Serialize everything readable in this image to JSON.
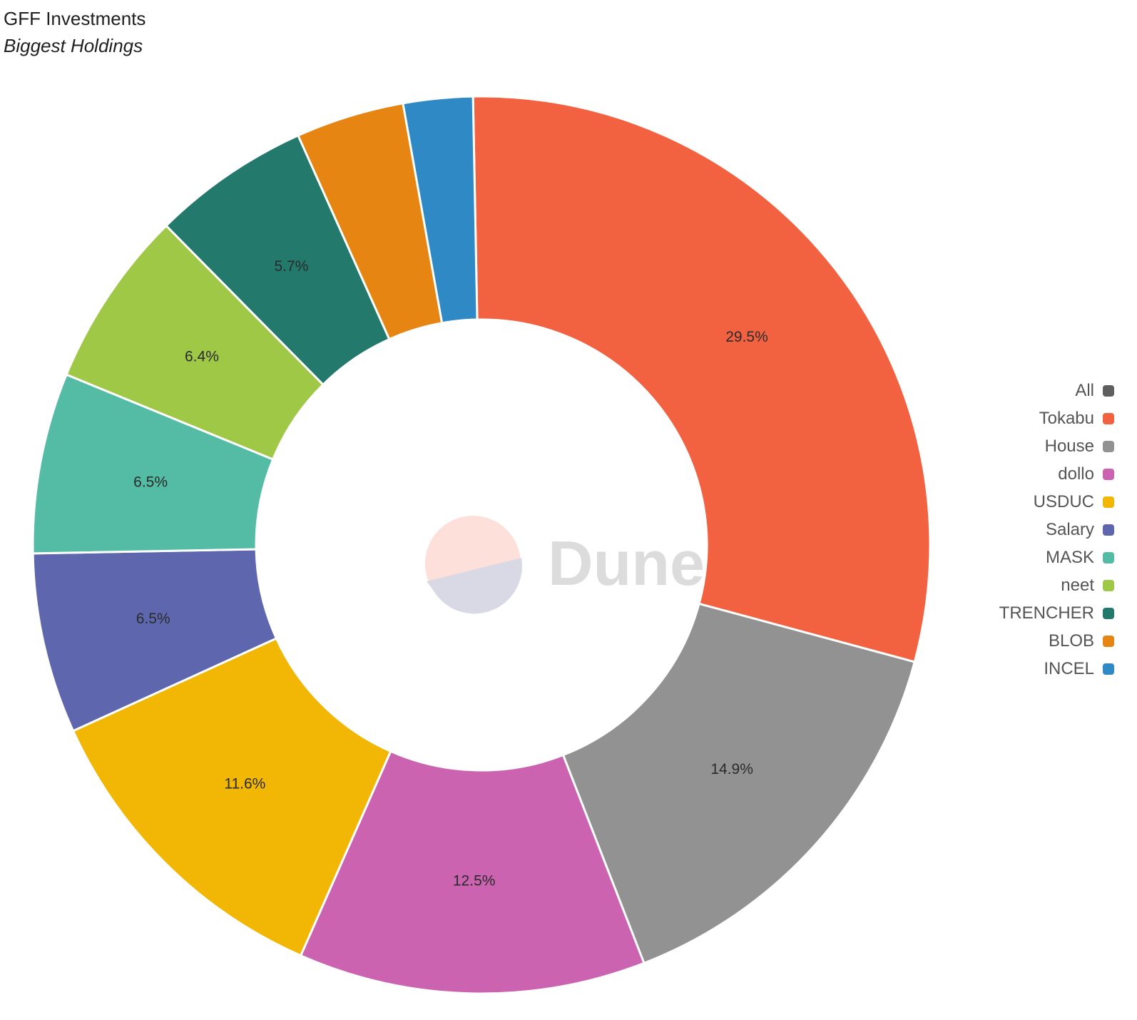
{
  "header": {
    "title": "GFF Investments",
    "subtitle": "Biggest Holdings"
  },
  "watermark": {
    "text": "Dune"
  },
  "chart_data": {
    "type": "pie",
    "style": "donut",
    "title": "GFF Investments",
    "subtitle": "Biggest Holdings",
    "legend_position": "right",
    "series": [
      {
        "name": "All",
        "value": null,
        "label": "",
        "color": "#5f5f5f"
      },
      {
        "name": "Tokabu",
        "value": 29.5,
        "label": "29.5%",
        "color": "#f26241"
      },
      {
        "name": "House",
        "value": 14.9,
        "label": "14.9%",
        "color": "#929292"
      },
      {
        "name": "dollo",
        "value": 12.5,
        "label": "12.5%",
        "color": "#cb63b1"
      },
      {
        "name": "USDUC",
        "value": 11.6,
        "label": "11.6%",
        "color": "#f2b705"
      },
      {
        "name": "Salary",
        "value": 6.5,
        "label": "6.5%",
        "color": "#5e67ae"
      },
      {
        "name": "MASK",
        "value": 6.5,
        "label": "6.5%",
        "color": "#54bca4"
      },
      {
        "name": "neet",
        "value": 6.4,
        "label": "6.4%",
        "color": "#9ec846"
      },
      {
        "name": "TRENCHER",
        "value": 5.7,
        "label": "5.7%",
        "color": "#22796c"
      },
      {
        "name": "BLOB",
        "value": 3.9,
        "label": "",
        "color": "#e68511"
      },
      {
        "name": "INCEL",
        "value": 2.5,
        "label": "",
        "color": "#2f89c5"
      }
    ]
  }
}
